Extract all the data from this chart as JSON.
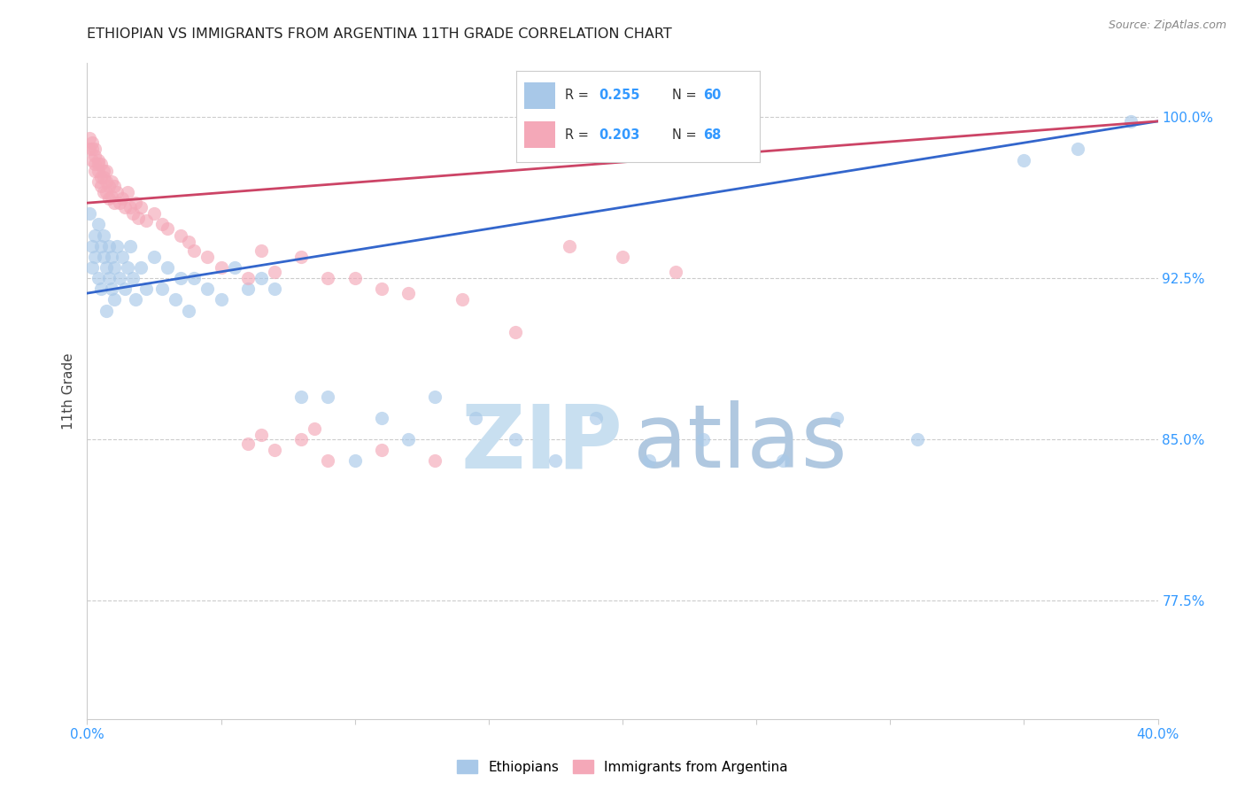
{
  "title": "ETHIOPIAN VS IMMIGRANTS FROM ARGENTINA 11TH GRADE CORRELATION CHART",
  "source": "Source: ZipAtlas.com",
  "ylabel": "11th Grade",
  "ytick_labels": [
    "100.0%",
    "92.5%",
    "85.0%",
    "77.5%"
  ],
  "ytick_values": [
    1.0,
    0.925,
    0.85,
    0.775
  ],
  "xtick_values": [
    0.0,
    0.05,
    0.1,
    0.15,
    0.2,
    0.25,
    0.3,
    0.35,
    0.4
  ],
  "xlim": [
    0.0,
    0.4
  ],
  "ylim": [
    0.72,
    1.025
  ],
  "blue_color": "#a8c8e8",
  "pink_color": "#f4a8b8",
  "blue_line_color": "#3366cc",
  "pink_line_color": "#cc4466",
  "legend_label_blue": "Ethiopians",
  "legend_label_pink": "Immigrants from Argentina",
  "blue_scatter_x": [
    0.001,
    0.002,
    0.002,
    0.003,
    0.003,
    0.004,
    0.004,
    0.005,
    0.005,
    0.006,
    0.006,
    0.007,
    0.007,
    0.008,
    0.008,
    0.009,
    0.009,
    0.01,
    0.01,
    0.011,
    0.012,
    0.013,
    0.014,
    0.015,
    0.016,
    0.017,
    0.018,
    0.02,
    0.022,
    0.025,
    0.028,
    0.03,
    0.033,
    0.035,
    0.038,
    0.04,
    0.045,
    0.05,
    0.055,
    0.06,
    0.065,
    0.07,
    0.08,
    0.09,
    0.1,
    0.11,
    0.12,
    0.13,
    0.145,
    0.16,
    0.175,
    0.19,
    0.21,
    0.23,
    0.26,
    0.28,
    0.31,
    0.35,
    0.37,
    0.39
  ],
  "blue_scatter_y": [
    0.955,
    0.94,
    0.93,
    0.945,
    0.935,
    0.95,
    0.925,
    0.94,
    0.92,
    0.935,
    0.945,
    0.93,
    0.91,
    0.94,
    0.925,
    0.935,
    0.92,
    0.93,
    0.915,
    0.94,
    0.925,
    0.935,
    0.92,
    0.93,
    0.94,
    0.925,
    0.915,
    0.93,
    0.92,
    0.935,
    0.92,
    0.93,
    0.915,
    0.925,
    0.91,
    0.925,
    0.92,
    0.915,
    0.93,
    0.92,
    0.925,
    0.92,
    0.87,
    0.87,
    0.84,
    0.86,
    0.85,
    0.87,
    0.86,
    0.85,
    0.84,
    0.86,
    0.84,
    0.85,
    0.84,
    0.86,
    0.85,
    0.98,
    0.985,
    0.998
  ],
  "pink_scatter_x": [
    0.001,
    0.001,
    0.002,
    0.002,
    0.002,
    0.003,
    0.003,
    0.003,
    0.003,
    0.004,
    0.004,
    0.004,
    0.004,
    0.005,
    0.005,
    0.005,
    0.006,
    0.006,
    0.006,
    0.007,
    0.007,
    0.007,
    0.008,
    0.008,
    0.009,
    0.009,
    0.01,
    0.01,
    0.011,
    0.012,
    0.013,
    0.014,
    0.015,
    0.016,
    0.017,
    0.018,
    0.019,
    0.02,
    0.022,
    0.025,
    0.028,
    0.03,
    0.035,
    0.038,
    0.04,
    0.045,
    0.05,
    0.06,
    0.065,
    0.07,
    0.08,
    0.09,
    0.1,
    0.11,
    0.12,
    0.14,
    0.16,
    0.18,
    0.2,
    0.22,
    0.06,
    0.065,
    0.07,
    0.08,
    0.085,
    0.09,
    0.11,
    0.13
  ],
  "pink_scatter_y": [
    0.99,
    0.985,
    0.988,
    0.985,
    0.98,
    0.985,
    0.982,
    0.978,
    0.975,
    0.98,
    0.978,
    0.975,
    0.97,
    0.978,
    0.972,
    0.968,
    0.975,
    0.972,
    0.965,
    0.975,
    0.97,
    0.965,
    0.968,
    0.962,
    0.97,
    0.963,
    0.968,
    0.96,
    0.965,
    0.96,
    0.962,
    0.958,
    0.965,
    0.958,
    0.955,
    0.96,
    0.953,
    0.958,
    0.952,
    0.955,
    0.95,
    0.948,
    0.945,
    0.942,
    0.938,
    0.935,
    0.93,
    0.925,
    0.938,
    0.928,
    0.935,
    0.925,
    0.925,
    0.92,
    0.918,
    0.915,
    0.9,
    0.94,
    0.935,
    0.928,
    0.848,
    0.852,
    0.845,
    0.85,
    0.855,
    0.84,
    0.845,
    0.84
  ],
  "blue_trend_x": [
    0.0,
    0.4
  ],
  "blue_trend_y": [
    0.918,
    0.998
  ],
  "pink_trend_x": [
    0.0,
    0.4
  ],
  "pink_trend_y": [
    0.96,
    0.998
  ],
  "background_color": "#ffffff",
  "grid_color": "#cccccc",
  "title_color": "#222222",
  "axis_label_color": "#444444",
  "right_tick_color": "#3399ff",
  "watermark_zip_color": "#c8dff0",
  "watermark_atlas_color": "#b0c8e0"
}
